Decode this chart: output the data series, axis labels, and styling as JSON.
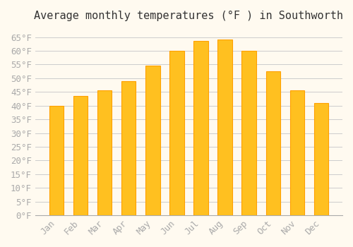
{
  "title": "Average monthly temperatures (°F ) in Southworth",
  "months": [
    "Jan",
    "Feb",
    "Mar",
    "Apr",
    "May",
    "Jun",
    "Jul",
    "Aug",
    "Sep",
    "Oct",
    "Nov",
    "Dec"
  ],
  "values": [
    40,
    43.5,
    45.5,
    49,
    54.5,
    60,
    63.5,
    64,
    60,
    52.5,
    45.5,
    41
  ],
  "bar_color_face": "#FFC020",
  "bar_color_edge": "#FFA000",
  "background_color": "#FFFAF0",
  "grid_color": "#CCCCCC",
  "ylim": [
    0,
    68
  ],
  "yticks": [
    0,
    5,
    10,
    15,
    20,
    25,
    30,
    35,
    40,
    45,
    50,
    55,
    60,
    65
  ],
  "title_fontsize": 11,
  "tick_fontsize": 9,
  "tick_label_color": "#AAAAAA",
  "font_family": "monospace"
}
